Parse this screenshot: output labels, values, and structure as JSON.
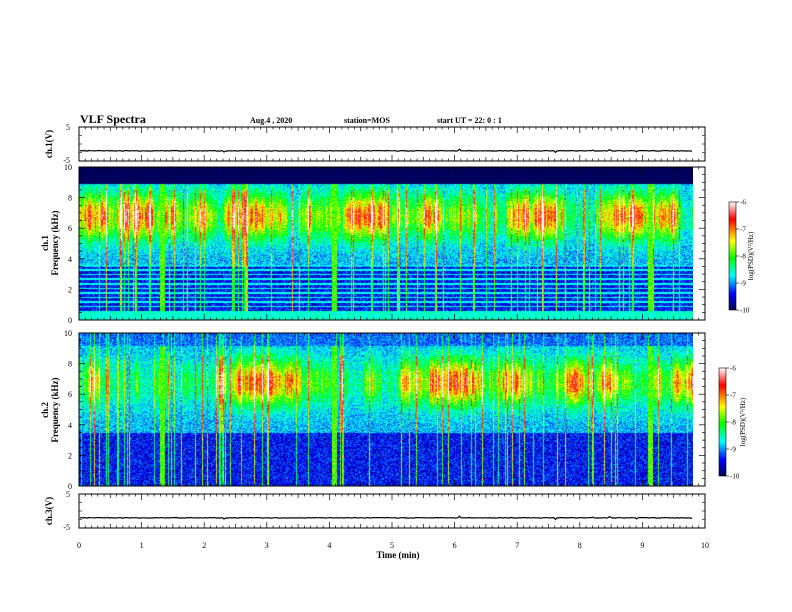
{
  "header": {
    "title": "VLF Spectra",
    "date": "Aug.4 , 2020",
    "station": "station=MOS",
    "start": "start UT = 22: 0 : 1"
  },
  "colorbar": {
    "label": "log(PSD)(V²/Hz)",
    "ticks": [
      "-6",
      "-7",
      "-8",
      "-9",
      "-10"
    ],
    "colors": [
      "#ffffff",
      "#ff0000",
      "#ffff00",
      "#00ff00",
      "#00ffff",
      "#0000ff",
      "#000050"
    ]
  },
  "chart_data": [
    {
      "type": "line",
      "name": "ch1-waveform",
      "ylabel": "ch.1(V)",
      "ylim": [
        -5,
        5
      ],
      "yticks": [
        "5",
        "-5"
      ],
      "baseline": -2,
      "xlim": [
        0,
        10
      ]
    },
    {
      "type": "heatmap",
      "name": "ch1-spectrogram",
      "ylabel_top": "ch.1",
      "ylabel": "Frequency (kHz)",
      "ylim": [
        0,
        10
      ],
      "yticks": [
        "0",
        "2",
        "4",
        "6",
        "8",
        "10"
      ],
      "xlim": [
        0,
        9.83
      ],
      "zlim": [
        -10,
        -6
      ]
    },
    {
      "type": "heatmap",
      "name": "ch2-spectrogram",
      "ylabel_top": "ch.2",
      "ylabel": "Frequency (kHz)",
      "ylim": [
        0,
        10
      ],
      "yticks": [
        "0",
        "2",
        "4",
        "6",
        "8",
        "10"
      ],
      "xlim": [
        0,
        9.83
      ],
      "zlim": [
        -10,
        -6
      ]
    },
    {
      "type": "line",
      "name": "ch3-waveform",
      "ylabel": "ch.3(V)",
      "ylim": [
        -5,
        5
      ],
      "yticks": [
        "5",
        "-5"
      ],
      "baseline": -2,
      "xlim": [
        0,
        10
      ]
    }
  ],
  "xaxis": {
    "label": "Time (min)",
    "ticks": [
      "0",
      "1",
      "2",
      "3",
      "4",
      "5",
      "6",
      "7",
      "8",
      "9",
      "10"
    ]
  }
}
